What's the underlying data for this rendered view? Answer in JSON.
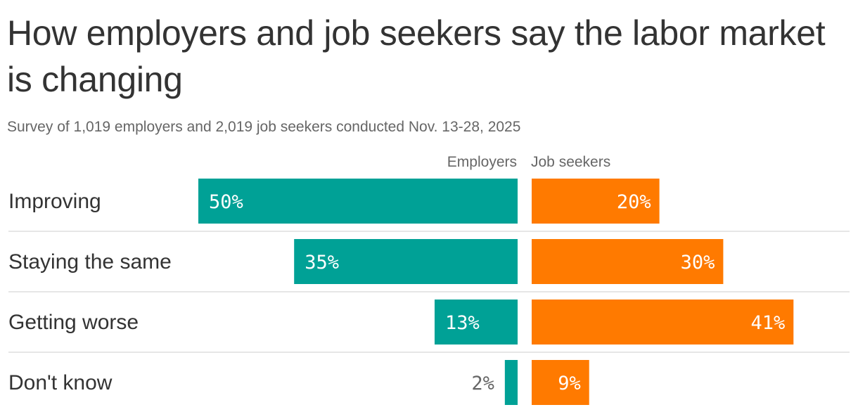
{
  "title": "How employers and job seekers say the labor market is changing",
  "subtitle": "Survey of 1,019 employers and 2,019 job seekers conducted Nov. 13-28, 2025",
  "colors": {
    "employers": "#00A196",
    "job_seekers": "#FF7A00",
    "label_inside": "#ffffff",
    "label_outside": "#666666"
  },
  "chart_data": {
    "type": "bar",
    "title": "How employers and job seekers say the labor market is changing",
    "subtitle": "Survey of 1,019 employers and 2,019 job seekers conducted Nov. 13-28, 2025",
    "categories": [
      "Improving",
      "Staying the same",
      "Getting worse",
      "Don't know"
    ],
    "series": [
      {
        "name": "Employers",
        "values": [
          50,
          35,
          13,
          2
        ],
        "labels": [
          "50%",
          "35%",
          "13%",
          "2%"
        ],
        "color": "#00A196",
        "direction": "left"
      },
      {
        "name": "Job seekers",
        "values": [
          20,
          30,
          41,
          9
        ],
        "labels": [
          "20%",
          "30%",
          "41%",
          "9%"
        ],
        "color": "#FF7A00",
        "direction": "right"
      }
    ],
    "unit": "%",
    "grid": false,
    "legend": "column headers above bars"
  }
}
